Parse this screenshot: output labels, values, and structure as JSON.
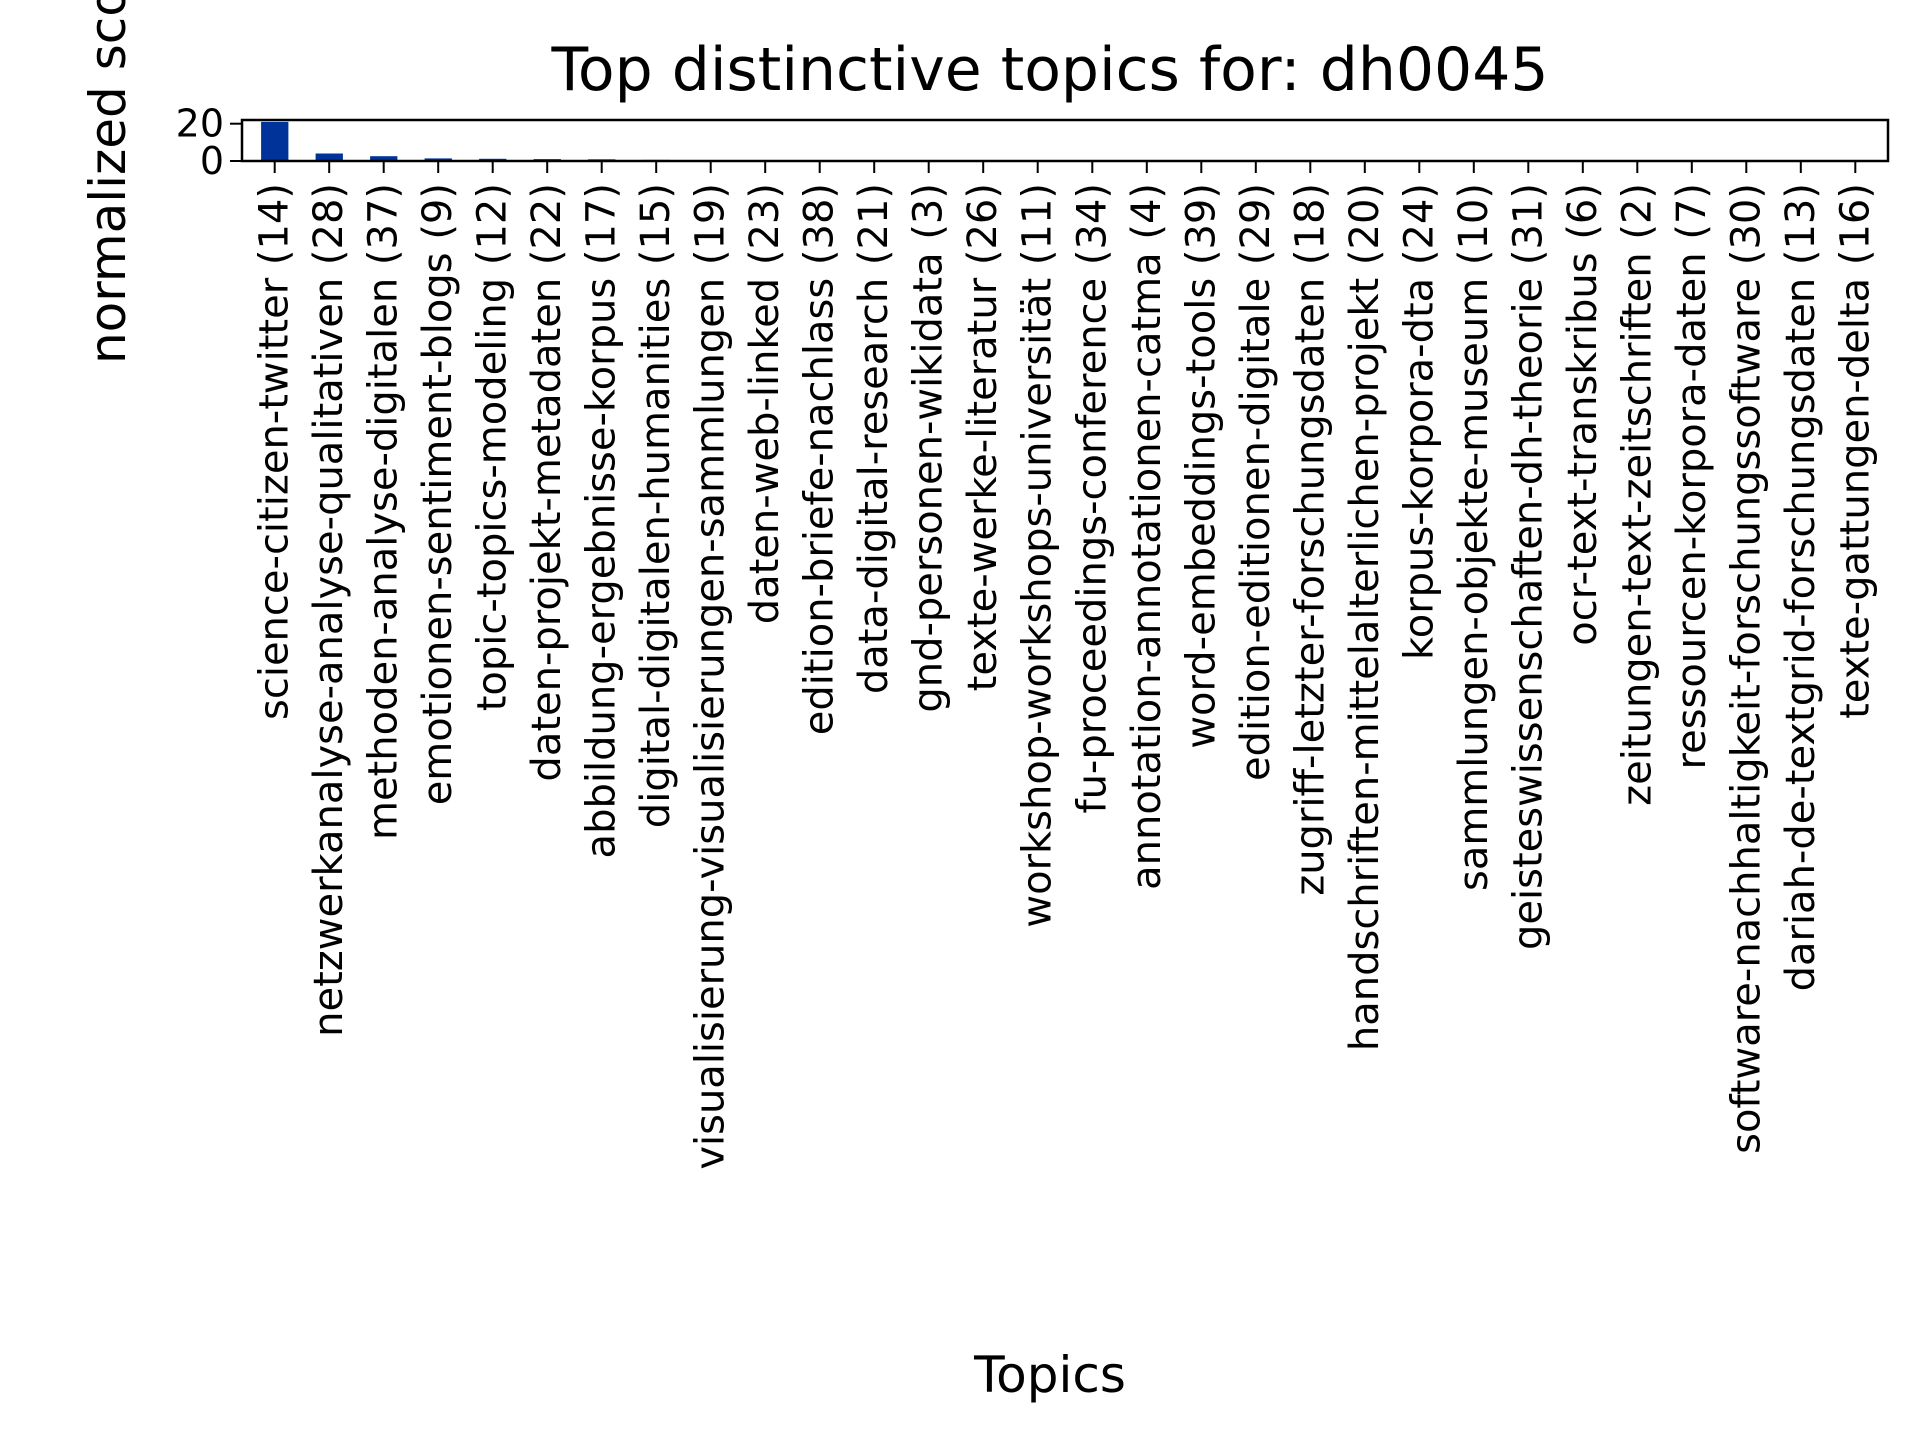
{
  "chart_data": {
    "type": "bar",
    "title": "Top distinctive topics for: dh0045",
    "xlabel": "Topics",
    "ylabel": "normalized score",
    "ylim": [
      0,
      22
    ],
    "yticks": [
      0,
      20
    ],
    "grid": false,
    "legend": "none",
    "bar_color": "#003399",
    "categories": [
      "science-citizen-twitter (14)",
      "netzwerkanalyse-analyse-qualitativen (28)",
      "methoden-analyse-digitalen (37)",
      "emotionen-sentiment-blogs (9)",
      "topic-topics-modeling (12)",
      "daten-projekt-metadaten (22)",
      "abbildung-ergebnisse-korpus (17)",
      "digital-digitalen-humanities (15)",
      "visualisierung-visualisierungen-sammlungen (19)",
      "daten-web-linked (23)",
      "edition-briefe-nachlass (38)",
      "data-digital-research (21)",
      "gnd-personen-wikidata (3)",
      "texte-werke-literatur (26)",
      "workshop-workshops-universität (11)",
      "fu-proceedings-conference (34)",
      "annotation-annotationen-catma (4)",
      "word-embeddings-tools (39)",
      "edition-editionen-digitale (29)",
      "zugriff-letzter-forschungsdaten (18)",
      "handschriften-mittelalterlichen-projekt (20)",
      "korpus-korpora-dta (24)",
      "sammlungen-objekte-museum (10)",
      "geisteswissenschaften-dh-theorie (31)",
      "ocr-text-transkribus (6)",
      "zeitungen-text-zeitschriften (2)",
      "ressourcen-korpora-daten (7)",
      "software-nachhaltigkeit-forschungssoftware (30)",
      "dariah-de-textgrid-forschungsdaten (13)",
      "texte-gattungen-delta (16)"
    ],
    "values": [
      21.0,
      4.0,
      2.6,
      1.4,
      1.2,
      1.0,
      0.9,
      0.6,
      0.5,
      0.5,
      0.4,
      0.4,
      0.3,
      0.3,
      0.3,
      0.3,
      0.2,
      0.2,
      0.2,
      0.2,
      0.2,
      0.2,
      0.1,
      0.1,
      0.1,
      0.1,
      0.1,
      0.1,
      0.1,
      0.1
    ]
  }
}
